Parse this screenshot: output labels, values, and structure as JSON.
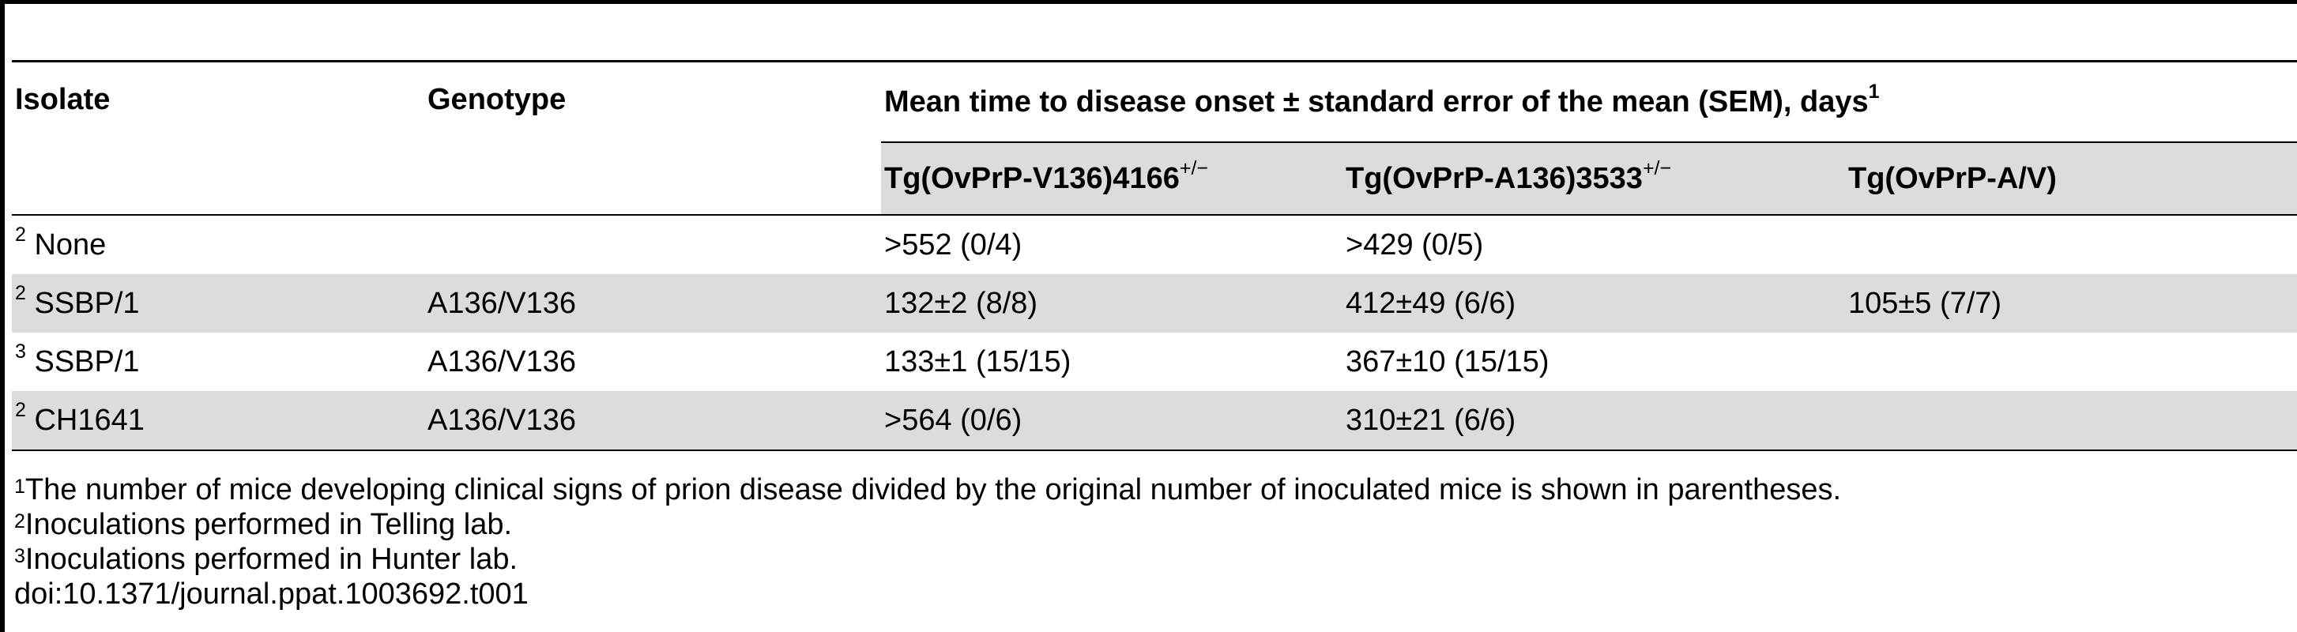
{
  "table": {
    "header": {
      "isolate": "Isolate",
      "genotype": "Genotype",
      "group_label": "Mean time to disease onset ± standard error of the mean (SEM), days",
      "group_sup": "1",
      "subcolumns": [
        {
          "label": "Tg(OvPrP-V136)4166",
          "sup": "+/−"
        },
        {
          "label": "Tg(OvPrP-A136)3533",
          "sup": "+/−"
        },
        {
          "label": "Tg(OvPrP-A/V)",
          "sup": ""
        }
      ]
    },
    "rows": [
      {
        "sup": "2",
        "isolate": "None",
        "genotype": "",
        "v136": ">552 (0/4)",
        "a136": ">429 (0/5)",
        "av": ""
      },
      {
        "sup": "2",
        "isolate": "SSBP/1",
        "genotype": "A136/V136",
        "v136": "132±2 (8/8)",
        "a136": "412±49 (6/6)",
        "av": "105±5 (7/7)"
      },
      {
        "sup": "3",
        "isolate": "SSBP/1",
        "genotype": "A136/V136",
        "v136": "133±1 (15/15)",
        "a136": "367±10 (15/15)",
        "av": ""
      },
      {
        "sup": "2",
        "isolate": "CH1641",
        "genotype": "A136/V136",
        "v136": ">564 (0/6)",
        "a136": "310±21 (6/6)",
        "av": ""
      }
    ]
  },
  "footnotes": [
    {
      "sup": "1",
      "text": "The number of mice developing clinical signs of prion disease divided by the original number of inoculated mice is shown in parentheses."
    },
    {
      "sup": "2",
      "text": "Inoculations performed in Telling lab."
    },
    {
      "sup": "3",
      "text": "Inoculations performed in Hunter lab."
    }
  ],
  "doi": "doi:10.1371/journal.ppat.1003692.t001"
}
